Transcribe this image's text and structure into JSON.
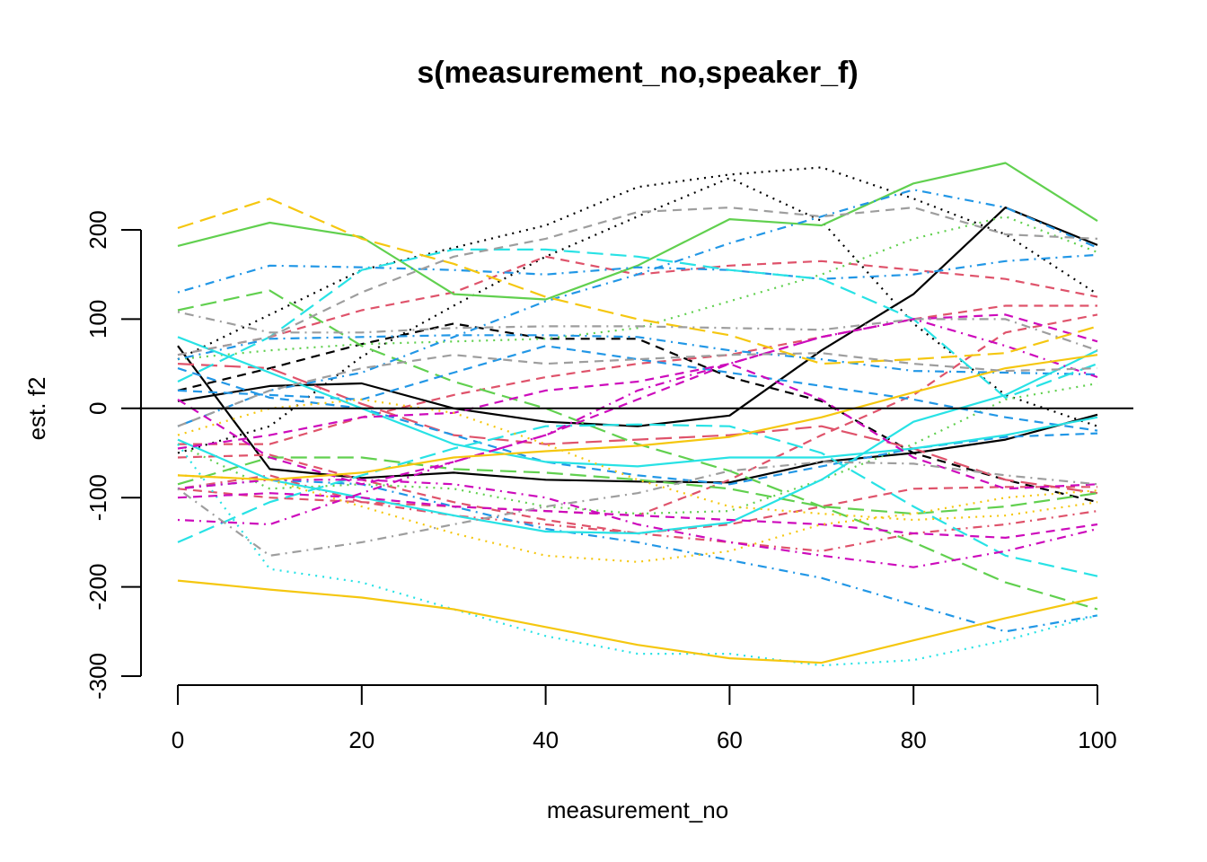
{
  "chart_data": {
    "type": "line",
    "title": "s(measurement_no,speaker_f)",
    "xlabel": "measurement_no",
    "ylabel": "est. f2",
    "xlim": [
      0,
      100
    ],
    "ylim": [
      -300,
      200
    ],
    "xticks": [
      "0",
      "20",
      "40",
      "60",
      "80",
      "100"
    ],
    "yticks": [
      "-300",
      "-200",
      "-100",
      "0",
      "100",
      "200"
    ],
    "reference_line": 0,
    "grid": false,
    "legend": "none",
    "series": [
      {
        "color": "#000000",
        "dash": "solid",
        "x": [
          0,
          10,
          20,
          30,
          40,
          50,
          60,
          70,
          80,
          90,
          100
        ],
        "y": [
          70,
          -68,
          -78,
          -72,
          -80,
          -82,
          -83,
          -60,
          -50,
          -35,
          -7
        ]
      },
      {
        "color": "#000000",
        "dash": "solid",
        "x": [
          0,
          10,
          20,
          30,
          40,
          50,
          60,
          70,
          80,
          90,
          100
        ],
        "y": [
          8,
          25,
          28,
          0,
          -15,
          -20,
          -8,
          65,
          128,
          225,
          183
        ]
      },
      {
        "color": "#000000",
        "dash": "dashed",
        "x": [
          0,
          10,
          20,
          30,
          40,
          50,
          60,
          70,
          80,
          90,
          100
        ],
        "y": [
          20,
          45,
          72,
          95,
          78,
          78,
          35,
          8,
          -50,
          -80,
          -105
        ]
      },
      {
        "color": "#000000",
        "dash": "dotted",
        "x": [
          0,
          10,
          20,
          30,
          40,
          50,
          60,
          70,
          80,
          90,
          100
        ],
        "y": [
          -50,
          -20,
          58,
          115,
          170,
          215,
          258,
          210,
          95,
          15,
          -20
        ]
      },
      {
        "color": "#000000",
        "dash": "dotted",
        "x": [
          0,
          10,
          20,
          30,
          40,
          50,
          60,
          70,
          80,
          90,
          100
        ],
        "y": [
          55,
          105,
          155,
          180,
          205,
          248,
          262,
          270,
          235,
          195,
          128
        ]
      },
      {
        "color": "#DF536B",
        "dash": "dashed",
        "x": [
          0,
          10,
          20,
          30,
          40,
          50,
          60,
          70,
          80,
          90,
          100
        ],
        "y": [
          60,
          80,
          110,
          130,
          170,
          150,
          160,
          165,
          155,
          145,
          125
        ]
      },
      {
        "color": "#DF536B",
        "dash": "dashed",
        "x": [
          0,
          10,
          20,
          30,
          40,
          50,
          60,
          70,
          80,
          90,
          100
        ],
        "y": [
          -40,
          -40,
          -10,
          15,
          35,
          50,
          60,
          80,
          100,
          115,
          115
        ]
      },
      {
        "color": "#DF536B",
        "dash": "dashed",
        "x": [
          0,
          10,
          20,
          30,
          40,
          50,
          60,
          70,
          80,
          90,
          100
        ],
        "y": [
          -55,
          -52,
          -80,
          -105,
          -125,
          -140,
          -130,
          -110,
          -90,
          -88,
          -88
        ]
      },
      {
        "color": "#DF536B",
        "dash": "dashed",
        "x": [
          0,
          10,
          20,
          30,
          40,
          50,
          60,
          70,
          80,
          90,
          100
        ],
        "y": [
          -90,
          -100,
          -105,
          -110,
          -115,
          -120,
          -80,
          -30,
          15,
          85,
          105
        ]
      },
      {
        "color": "#DF536B",
        "dash": "dashdot",
        "x": [
          0,
          10,
          20,
          30,
          40,
          50,
          60,
          70,
          80,
          90,
          100
        ],
        "y": [
          -90,
          -75,
          -105,
          -120,
          -130,
          -140,
          -150,
          -160,
          -140,
          -130,
          -115
        ]
      },
      {
        "color": "#DF536B",
        "dash": "longdash",
        "x": [
          0,
          10,
          20,
          30,
          40,
          50,
          60,
          70,
          80,
          90,
          100
        ],
        "y": [
          50,
          45,
          5,
          -30,
          -40,
          -35,
          -30,
          -20,
          -45,
          -80,
          -95
        ]
      },
      {
        "color": "#61D04F",
        "dash": "solid",
        "x": [
          0,
          10,
          20,
          30,
          40,
          50,
          60,
          70,
          80,
          90,
          100
        ],
        "y": [
          182,
          208,
          192,
          128,
          122,
          160,
          212,
          205,
          252,
          275,
          210
        ]
      },
      {
        "color": "#61D04F",
        "dash": "longdash",
        "x": [
          0,
          10,
          20,
          30,
          40,
          50,
          60,
          70,
          80,
          90,
          100
        ],
        "y": [
          110,
          132,
          70,
          30,
          0,
          -40,
          -70,
          -110,
          -150,
          -195,
          -225
        ]
      },
      {
        "color": "#61D04F",
        "dash": "longdash",
        "x": [
          0,
          10,
          20,
          30,
          40,
          50,
          60,
          70,
          80,
          90,
          100
        ],
        "y": [
          -85,
          -55,
          -55,
          -68,
          -72,
          -80,
          -90,
          -110,
          -118,
          -110,
          -95
        ]
      },
      {
        "color": "#61D04F",
        "dash": "dotted",
        "x": [
          0,
          10,
          20,
          30,
          40,
          50,
          60,
          70,
          80,
          90,
          100
        ],
        "y": [
          -40,
          -90,
          -85,
          -90,
          -110,
          -118,
          -115,
          -80,
          -40,
          10,
          28
        ]
      },
      {
        "color": "#61D04F",
        "dash": "dotted",
        "x": [
          0,
          10,
          20,
          30,
          40,
          50,
          60,
          70,
          80,
          90,
          100
        ],
        "y": [
          55,
          65,
          72,
          75,
          78,
          90,
          120,
          150,
          190,
          215,
          175
        ]
      },
      {
        "color": "#2297E6",
        "dash": "dashdot",
        "x": [
          0,
          10,
          20,
          30,
          40,
          50,
          60,
          70,
          80,
          90,
          100
        ],
        "y": [
          130,
          160,
          158,
          155,
          150,
          158,
          155,
          145,
          150,
          165,
          172
        ]
      },
      {
        "color": "#2297E6",
        "dash": "dashdot",
        "x": [
          0,
          10,
          20,
          30,
          40,
          50,
          60,
          70,
          80,
          90,
          100
        ],
        "y": [
          -90,
          -80,
          -85,
          -110,
          -135,
          -150,
          -170,
          -190,
          -220,
          -250,
          -232
        ]
      },
      {
        "color": "#2297E6",
        "dash": "dashdot",
        "x": [
          0,
          10,
          20,
          30,
          40,
          50,
          60,
          70,
          80,
          90,
          100
        ],
        "y": [
          -20,
          20,
          40,
          80,
          120,
          150,
          185,
          215,
          245,
          225,
          180
        ]
      },
      {
        "color": "#2297E6",
        "dash": "dashdot",
        "x": [
          0,
          10,
          20,
          30,
          40,
          50,
          60,
          70,
          80,
          90,
          100
        ],
        "y": [
          55,
          78,
          80,
          82,
          82,
          80,
          65,
          55,
          42,
          40,
          38
        ]
      },
      {
        "color": "#2297E6",
        "dash": "dashed",
        "x": [
          0,
          10,
          20,
          30,
          40,
          50,
          60,
          70,
          80,
          90,
          100
        ],
        "y": [
          45,
          12,
          0,
          -30,
          -60,
          -75,
          -85,
          -65,
          -45,
          -32,
          -28
        ]
      },
      {
        "color": "#2297E6",
        "dash": "dashed",
        "x": [
          0,
          10,
          20,
          30,
          40,
          50,
          60,
          70,
          80,
          90,
          100
        ],
        "y": [
          20,
          15,
          10,
          40,
          70,
          55,
          40,
          25,
          10,
          -10,
          -25
        ]
      },
      {
        "color": "#28E2E5",
        "dash": "solid",
        "x": [
          0,
          10,
          20,
          30,
          40,
          50,
          60,
          70,
          80,
          90,
          100
        ],
        "y": [
          80,
          40,
          0,
          -40,
          -60,
          -65,
          -55,
          -55,
          -45,
          -30,
          -10
        ]
      },
      {
        "color": "#28E2E5",
        "dash": "solid",
        "x": [
          0,
          10,
          20,
          30,
          40,
          50,
          60,
          70,
          80,
          90,
          100
        ],
        "y": [
          -35,
          -80,
          -100,
          -120,
          -138,
          -140,
          -128,
          -80,
          -15,
          15,
          65
        ]
      },
      {
        "color": "#28E2E5",
        "dash": "longdash",
        "x": [
          0,
          10,
          20,
          30,
          40,
          50,
          60,
          70,
          80,
          90,
          100
        ],
        "y": [
          30,
          80,
          155,
          178,
          178,
          170,
          155,
          145,
          100,
          12,
          50
        ]
      },
      {
        "color": "#28E2E5",
        "dash": "longdash",
        "x": [
          0,
          10,
          20,
          30,
          40,
          50,
          60,
          70,
          80,
          90,
          100
        ],
        "y": [
          -150,
          -105,
          -75,
          -45,
          -20,
          -18,
          -20,
          -50,
          -110,
          -165,
          -188
        ]
      },
      {
        "color": "#28E2E5",
        "dash": "dotted",
        "x": [
          0,
          10,
          20,
          30,
          40,
          50,
          60,
          70,
          80,
          90,
          100
        ],
        "y": [
          -40,
          -180,
          -195,
          -225,
          -255,
          -275,
          -275,
          -288,
          -282,
          -260,
          -232
        ]
      },
      {
        "color": "#CD0BBC",
        "dash": "dashed",
        "x": [
          0,
          10,
          20,
          30,
          40,
          50,
          60,
          70,
          80,
          90,
          100
        ],
        "y": [
          -45,
          -30,
          -10,
          -5,
          20,
          30,
          50,
          80,
          100,
          105,
          75
        ]
      },
      {
        "color": "#CD0BBC",
        "dash": "dashed",
        "x": [
          0,
          10,
          20,
          30,
          40,
          50,
          60,
          70,
          80,
          90,
          100
        ],
        "y": [
          10,
          -55,
          -85,
          -60,
          -30,
          10,
          50,
          10,
          -55,
          -90,
          -85
        ]
      },
      {
        "color": "#CD0BBC",
        "dash": "dashdot",
        "x": [
          0,
          10,
          20,
          30,
          40,
          50,
          60,
          70,
          80,
          90,
          100
        ],
        "y": [
          -125,
          -130,
          -95,
          -60,
          -30,
          20,
          50,
          80,
          100,
          70,
          35
        ]
      },
      {
        "color": "#CD0BBC",
        "dash": "dashdot",
        "x": [
          0,
          10,
          20,
          30,
          40,
          50,
          60,
          70,
          80,
          90,
          100
        ],
        "y": [
          -90,
          -80,
          -80,
          -85,
          -100,
          -130,
          -150,
          -165,
          -178,
          -160,
          -135
        ]
      },
      {
        "color": "#CD0BBC",
        "dash": "dashed",
        "x": [
          0,
          10,
          20,
          30,
          40,
          50,
          60,
          70,
          80,
          90,
          100
        ],
        "y": [
          -100,
          -95,
          -100,
          -110,
          -115,
          -120,
          -125,
          -130,
          -140,
          -145,
          -130
        ]
      },
      {
        "color": "#F5C710",
        "dash": "solid",
        "x": [
          0,
          10,
          20,
          30,
          40,
          50,
          60,
          70,
          80,
          90,
          100
        ],
        "y": [
          -193,
          -203,
          -212,
          -225,
          -245,
          -265,
          -280,
          -285,
          -260,
          -235,
          -212
        ]
      },
      {
        "color": "#F5C710",
        "dash": "solid",
        "x": [
          0,
          10,
          20,
          30,
          40,
          50,
          60,
          70,
          80,
          90,
          100
        ],
        "y": [
          -75,
          -80,
          -72,
          -55,
          -48,
          -42,
          -32,
          -10,
          18,
          45,
          60
        ]
      },
      {
        "color": "#F5C710",
        "dash": "longdash",
        "x": [
          0,
          10,
          20,
          30,
          40,
          50,
          60,
          70,
          80,
          90,
          100
        ],
        "y": [
          202,
          235,
          190,
          162,
          125,
          100,
          82,
          50,
          55,
          62,
          92
        ]
      },
      {
        "color": "#F5C710",
        "dash": "dotted",
        "x": [
          0,
          10,
          20,
          30,
          40,
          50,
          60,
          70,
          80,
          90,
          100
        ],
        "y": [
          -30,
          0,
          10,
          -5,
          -40,
          -80,
          -110,
          -118,
          -125,
          -120,
          -105
        ]
      },
      {
        "color": "#F5C710",
        "dash": "dotted",
        "x": [
          0,
          10,
          20,
          30,
          40,
          50,
          60,
          70,
          80,
          90,
          100
        ],
        "y": [
          -75,
          -80,
          -110,
          -140,
          -165,
          -172,
          -160,
          -130,
          -118,
          -100,
          -92
        ]
      },
      {
        "color": "#9E9E9E",
        "dash": "dashdot",
        "x": [
          0,
          10,
          20,
          30,
          40,
          50,
          60,
          70,
          80,
          90,
          100
        ],
        "y": [
          -90,
          -165,
          -150,
          -130,
          -110,
          -95,
          -70,
          -60,
          -62,
          -75,
          -85
        ]
      },
      {
        "color": "#9E9E9E",
        "dash": "dashdot",
        "x": [
          0,
          10,
          20,
          30,
          40,
          50,
          60,
          70,
          80,
          90,
          100
        ],
        "y": [
          108,
          85,
          85,
          90,
          92,
          92,
          90,
          88,
          100,
          100,
          65
        ]
      },
      {
        "color": "#9E9E9E",
        "dash": "dashed",
        "x": [
          0,
          10,
          20,
          30,
          40,
          50,
          60,
          70,
          80,
          90,
          100
        ],
        "y": [
          60,
          80,
          130,
          170,
          190,
          220,
          225,
          215,
          225,
          195,
          190
        ]
      },
      {
        "color": "#9E9E9E",
        "dash": "dashed",
        "x": [
          0,
          10,
          20,
          30,
          40,
          50,
          60,
          70,
          80,
          90,
          100
        ],
        "y": [
          -20,
          20,
          45,
          60,
          50,
          55,
          60,
          62,
          50,
          42,
          45
        ]
      }
    ]
  }
}
